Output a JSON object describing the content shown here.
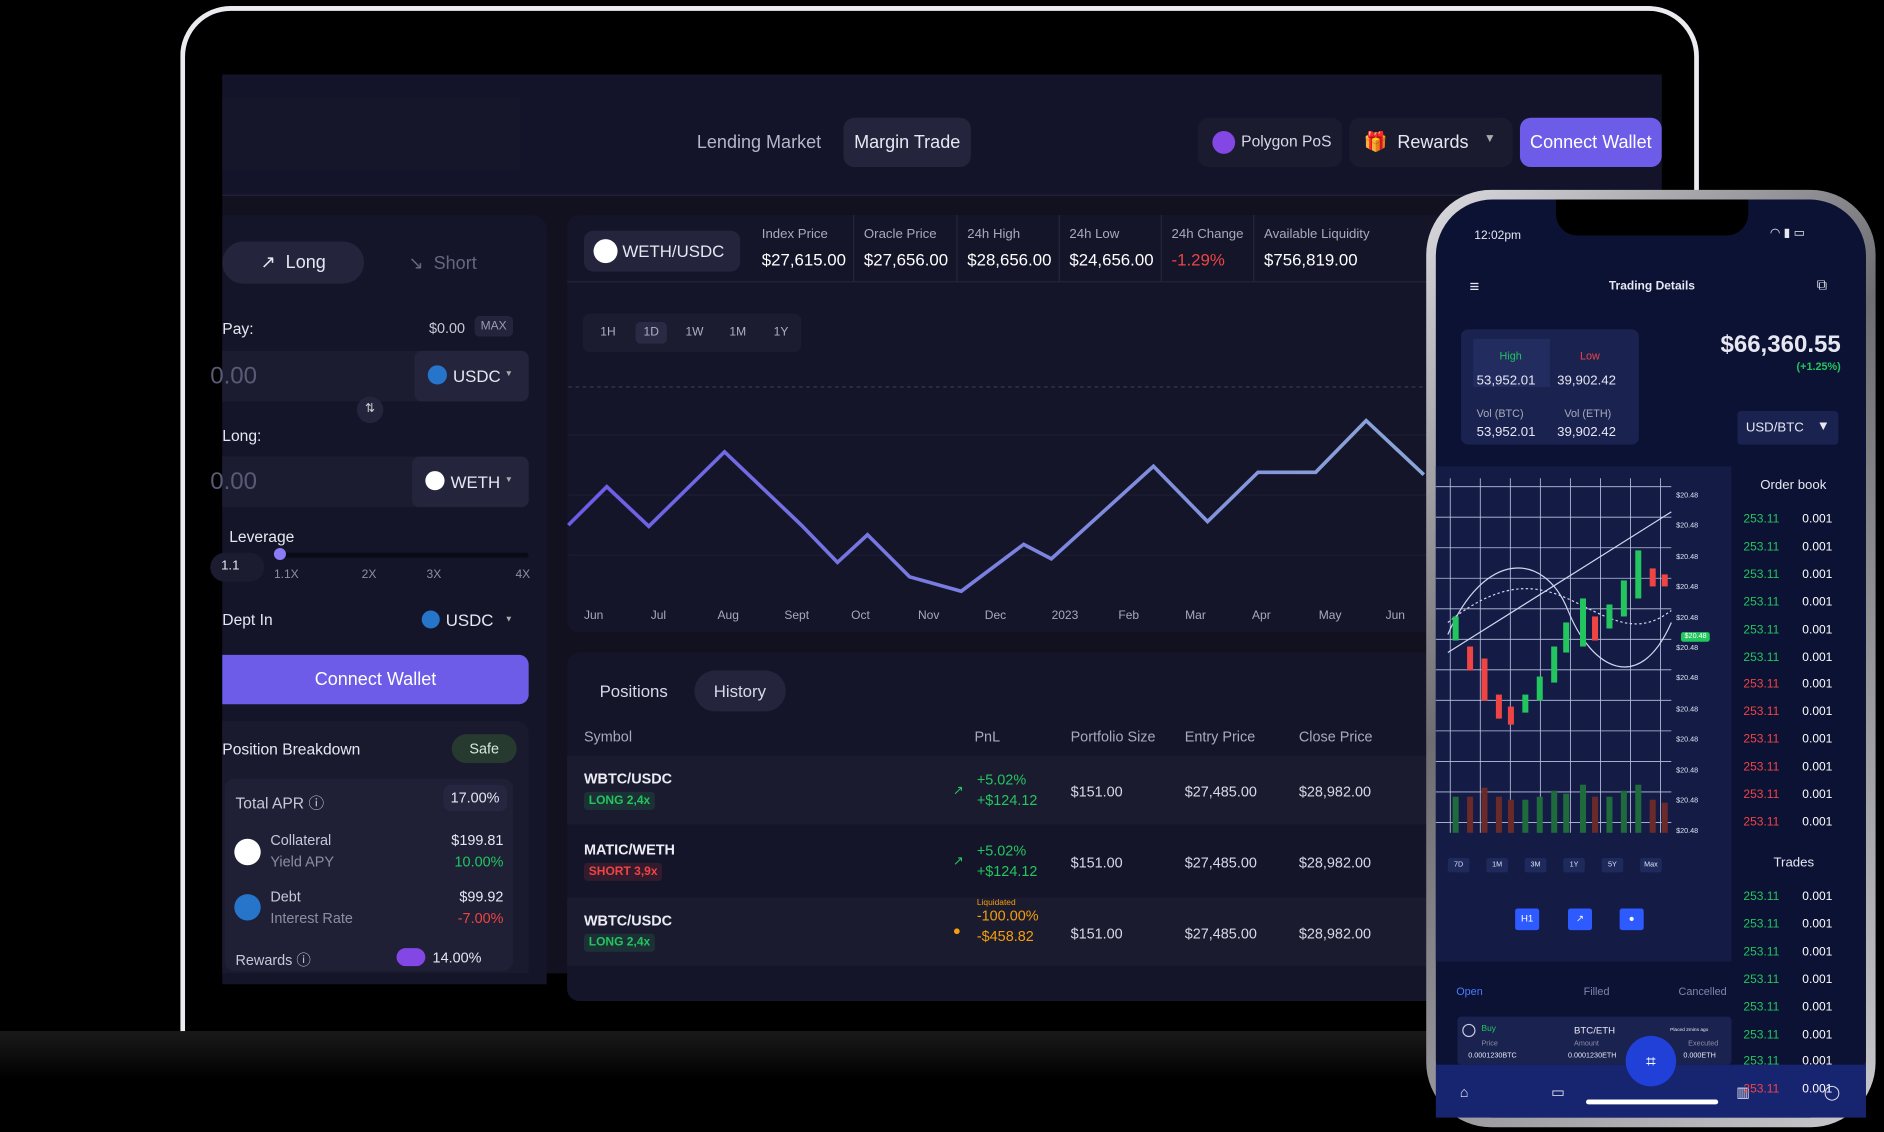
{
  "laptop": {
    "nav": {
      "lending_market": "Lending Market",
      "margin_trade": "Margin Trade",
      "network": "Polygon PoS",
      "rewards": "Rewards",
      "connect_wallet": "Connect Wallet"
    },
    "order_form": {
      "long": "Long",
      "short": "Short",
      "pay_label": "Pay:",
      "balance": "$0.00",
      "max": "MAX",
      "pay_amount": "0.00",
      "pay_token": "USDC",
      "long_label": "Long:",
      "long_amount": "0.00",
      "long_token": "WETH",
      "leverage_label": "Leverage",
      "leverage_input": "1.1",
      "leverage_marks": [
        "1.1X",
        "2X",
        "3X",
        "4X"
      ],
      "debt_label": "Dept In",
      "debt_token": "USDC",
      "connect_wallet": "Connect Wallet"
    },
    "breakdown": {
      "title": "Position Breakdown",
      "status": "Safe",
      "total_apr_label": "Total APR",
      "total_apr": "17.00%",
      "collateral_label": "Collateral",
      "collateral": "$199.81",
      "yield_label": "Yield APY",
      "yield": "10.00%",
      "debt_label": "Debt",
      "debt": "$99.92",
      "interest_label": "Interest Rate",
      "interest": "-7.00%",
      "rewards_label": "Rewards",
      "rewards": "14.00%"
    },
    "market": {
      "pair": "WETH/USDC",
      "stats": [
        {
          "label": "Index Price",
          "value": "$27,615.00",
          "color": "#ffffff"
        },
        {
          "label": "Oracle Price",
          "value": "$27,656.00",
          "color": "#ffffff"
        },
        {
          "label": "24h High",
          "value": "$28,656.00",
          "color": "#ffffff"
        },
        {
          "label": "24h Low",
          "value": "$24,656.00",
          "color": "#ffffff"
        },
        {
          "label": "24h Change",
          "value": "-1.29%",
          "color": "#ef4444"
        },
        {
          "label": "Available Liquidity",
          "value": "$756,819.00",
          "color": "#ffffff"
        }
      ],
      "ranges": [
        "1H",
        "1D",
        "1W",
        "1M",
        "1Y"
      ],
      "months": [
        "Jun",
        "Jul",
        "Aug",
        "Sept",
        "Oct",
        "Nov",
        "Dec",
        "2023",
        "Feb",
        "Mar",
        "Apr",
        "May",
        "Jun"
      ]
    },
    "positions": {
      "tabs": [
        "Positions",
        "History"
      ],
      "columns": [
        "Symbol",
        "PnL",
        "Portfolio Size",
        "Entry Price",
        "Close Price"
      ],
      "rows": [
        {
          "symbol": "WBTC/USDC",
          "side": "LONG 2,4x",
          "side_color": "#22c55e",
          "pnl_pct": "+5.02%",
          "pnl": "+$124.12",
          "pnl_color": "#22c55e",
          "size": "$151.00",
          "entry": "$27,485.00",
          "close": "$28,982.00"
        },
        {
          "symbol": "MATIC/WETH",
          "side": "SHORT 3,9x",
          "side_color": "#ef4444",
          "pnl_pct": "+5.02%",
          "pnl": "+$124.12",
          "pnl_color": "#22c55e",
          "size": "$151.00",
          "entry": "$27,485.00",
          "close": "$28,982.00"
        },
        {
          "symbol": "WBTC/USDC",
          "side": "LONG 2,4x",
          "side_color": "#22c55e",
          "note": "Liquidated",
          "pnl_pct": "-100.00%",
          "pnl": "-$458.82",
          "pnl_color": "#f59e0b",
          "size": "$151.00",
          "entry": "$27,485.00",
          "close": "$28,982.00"
        }
      ]
    }
  },
  "phone": {
    "time": "12:02pm",
    "title": "Trading Details",
    "high_label": "High",
    "high": "53,952.01",
    "low_label": "Low",
    "low": "39,902.42",
    "vol_btc_label": "Vol (BTC)",
    "vol_btc": "53,952.01",
    "vol_eth_label": "Vol (ETH)",
    "vol_eth": "39,902.42",
    "price": "$66,360.55",
    "change": "(+1.25%)",
    "pair": "USD/BTC",
    "price_labels": [
      "$20.48",
      "$20.48",
      "$20.48",
      "$20.48",
      "$20.48",
      "$20.48",
      "$20.48",
      "$20.48",
      "$20.48",
      "$20.48",
      "$20.48",
      "$20.48"
    ],
    "current_label": "$20.48",
    "periods": [
      "7D",
      "1M",
      "3M",
      "1Y",
      "5Y",
      "Max"
    ],
    "interval": "H1",
    "order_book_title": "Order book",
    "order_book": [
      {
        "price": "253.11",
        "qty": "0.001",
        "color": "#22c55e"
      },
      {
        "price": "253.11",
        "qty": "0.001",
        "color": "#22c55e"
      },
      {
        "price": "253.11",
        "qty": "0.001",
        "color": "#22c55e"
      },
      {
        "price": "253.11",
        "qty": "0.001",
        "color": "#22c55e"
      },
      {
        "price": "253.11",
        "qty": "0.001",
        "color": "#22c55e"
      },
      {
        "price": "253.11",
        "qty": "0.001",
        "color": "#22c55e"
      },
      {
        "price": "253.11",
        "qty": "0.001",
        "color": "#ef4444"
      },
      {
        "price": "253.11",
        "qty": "0.001",
        "color": "#ef4444"
      },
      {
        "price": "253.11",
        "qty": "0.001",
        "color": "#ef4444"
      },
      {
        "price": "253.11",
        "qty": "0.001",
        "color": "#ef4444"
      },
      {
        "price": "253.11",
        "qty": "0.001",
        "color": "#ef4444"
      },
      {
        "price": "253.11",
        "qty": "0.001",
        "color": "#ef4444"
      }
    ],
    "trades_title": "Trades",
    "trades": [
      {
        "price": "253.11",
        "qty": "0.001",
        "color": "#22c55e"
      },
      {
        "price": "253.11",
        "qty": "0.001",
        "color": "#22c55e"
      },
      {
        "price": "253.11",
        "qty": "0.001",
        "color": "#22c55e"
      },
      {
        "price": "253.11",
        "qty": "0.001",
        "color": "#22c55e"
      },
      {
        "price": "253.11",
        "qty": "0.001",
        "color": "#22c55e"
      },
      {
        "price": "253.11",
        "qty": "0.001",
        "color": "#22c55e"
      },
      {
        "price": "253.11",
        "qty": "0.001",
        "color": "#22c55e"
      },
      {
        "price": "253.11",
        "qty": "0.001",
        "color": "#ef4444"
      }
    ],
    "order_tabs": [
      "Open",
      "Filled",
      "Cancelled"
    ],
    "order": {
      "side": "Buy",
      "pair": "BTC/ETH",
      "placed": "Placed 2mins ago",
      "price_label": "Price",
      "price": "0.0001230BTC",
      "amount_label": "Amount",
      "amount": "0.0001230ETH",
      "executed_label": "Executed",
      "executed": "0.000ETH"
    }
  }
}
